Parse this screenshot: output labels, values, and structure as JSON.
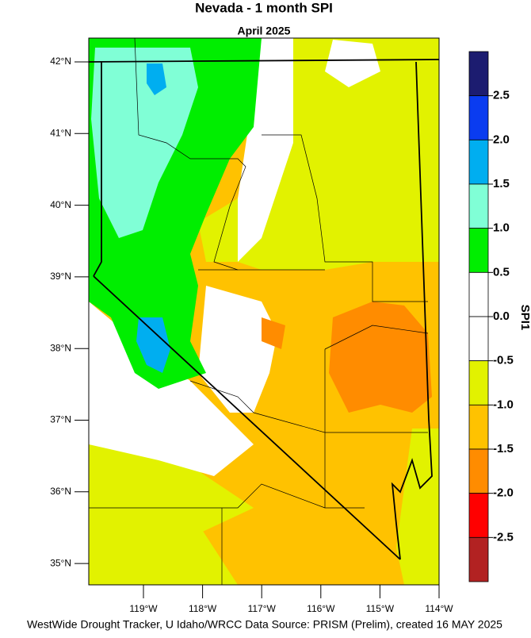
{
  "title": "Nevada - 1 month SPI",
  "subtitle": "April 2025",
  "lat_labels": [
    "42°N",
    "41°N",
    "40°N",
    "39°N",
    "38°N",
    "37°N",
    "36°N",
    "35°N"
  ],
  "lon_labels": [
    "119°W",
    "118°W",
    "117°W",
    "116°W",
    "115°W",
    "114°W"
  ],
  "colorbar": {
    "title": "SPI1",
    "labels": [
      "2.5",
      "2.0",
      "1.5",
      "1.0",
      "0.5",
      "0.0",
      "-0.5",
      "-1.0",
      "-1.5",
      "-2.0",
      "-2.5"
    ],
    "colors": [
      "#1c1c70",
      "#0a3cf0",
      "#00aef0",
      "#80ffd6",
      "#00ee00",
      "#ffffff",
      "#ffffff",
      "#e2f200",
      "#ffc200",
      "#ff8c00",
      "#ff0000",
      "#b22222"
    ]
  },
  "footer": "WestWide Drought Tracker, U Idaho/WRCC Data Source: PRISM (Prelim), created 16 MAY 2025"
}
